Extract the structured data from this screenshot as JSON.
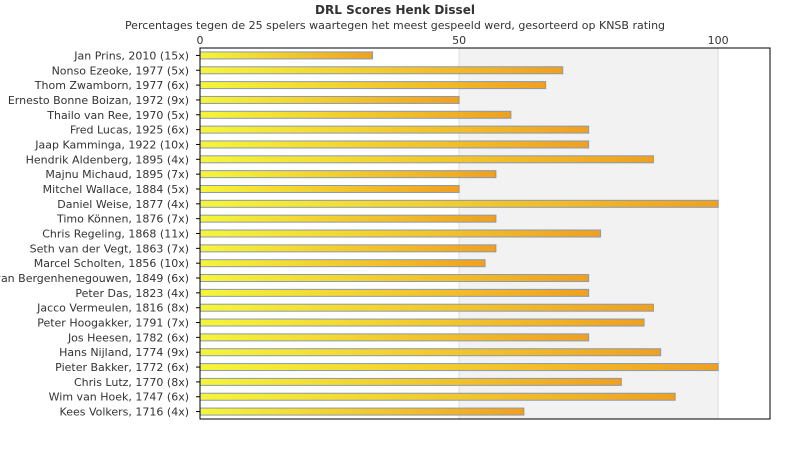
{
  "chart_data": {
    "type": "bar",
    "orientation": "horizontal",
    "title": "DRL Scores Henk Dissel",
    "subtitle": "Percentages tegen de 25 spelers waartegen het meest gespeeld werd, gesorteerd op KNSB rating",
    "xlabel": "",
    "ylabel": "",
    "xlim": [
      0,
      110
    ],
    "ticks": [
      0,
      50,
      100
    ],
    "grid": true,
    "legend": "none",
    "categories": [
      "Jan Prins, 2010 (15x)",
      "Nonso Ezeoke, 1977 (5x)",
      "Thom Zwamborn, 1977 (6x)",
      "Ernesto Bonne Boizan, 1972 (9x)",
      "Thailo van Ree, 1970 (5x)",
      "Fred Lucas, 1925 (6x)",
      "Jaap Kamminga, 1922 (10x)",
      "Hendrik Aldenberg, 1895 (4x)",
      "Majnu Michaud, 1895 (7x)",
      "Mitchel Wallace, 1884 (5x)",
      "Daniel Weise, 1877 (4x)",
      "Timo Können, 1876 (7x)",
      "Chris Regeling, 1868 (11x)",
      "Seth van der Vegt, 1863 (7x)",
      "Marcel Scholten, 1856 (10x)",
      "Roel van Bergenhenegouwen, 1849 (6x)",
      "Peter Das, 1823 (4x)",
      "Jacco Vermeulen, 1816 (8x)",
      "Peter Hoogakker, 1791 (7x)",
      "Jos Heesen, 1782 (6x)",
      "Hans Nijland, 1774 (9x)",
      "Pieter Bakker, 1772 (6x)",
      "Chris Lutz, 1770 (8x)",
      "Wim van Hoek, 1747 (6x)",
      "Kees Volkers, 1716 (4x)"
    ],
    "values": [
      33.3,
      70,
      66.7,
      50,
      60,
      75,
      75,
      87.5,
      57.1,
      50,
      100,
      57.1,
      77.3,
      57.1,
      55,
      75,
      75,
      87.5,
      85.7,
      75,
      88.9,
      100,
      81.3,
      91.7,
      62.5
    ],
    "colors": {
      "bar_start": "#f5f53a",
      "bar_end": "#f0a020",
      "bar_border": "#8a9ab0",
      "band": "#f2f2f2",
      "grid": "#dddddd",
      "axis": "#000000"
    }
  }
}
